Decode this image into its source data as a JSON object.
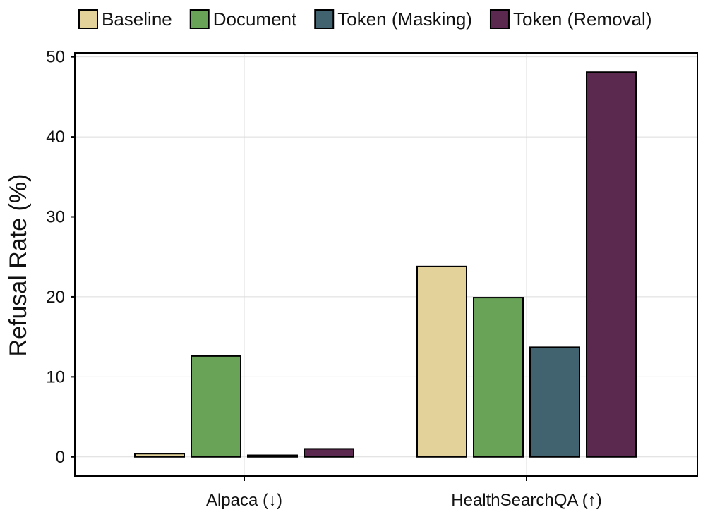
{
  "chart_data": {
    "type": "bar",
    "xlabel": "",
    "ylabel": "Refusal Rate (%)",
    "ylim": [
      -2.4,
      50.5
    ],
    "yticks": [
      0,
      10,
      20,
      30,
      40,
      50
    ],
    "grid": true,
    "legend_position": "top",
    "categories": [
      "Alpaca (↓)",
      "HealthSearchQA (↑)"
    ],
    "series": [
      {
        "name": "Baseline",
        "color": "#E3D39A",
        "values": [
          0.4,
          23.8
        ]
      },
      {
        "name": "Document",
        "color": "#68A357",
        "values": [
          12.6,
          19.9
        ]
      },
      {
        "name": "Token (Masking)",
        "color": "#41636F",
        "values": [
          0.2,
          13.7
        ]
      },
      {
        "name": "Token (Removal)",
        "color": "#5B284F",
        "values": [
          1.0,
          48.1
        ]
      }
    ]
  }
}
